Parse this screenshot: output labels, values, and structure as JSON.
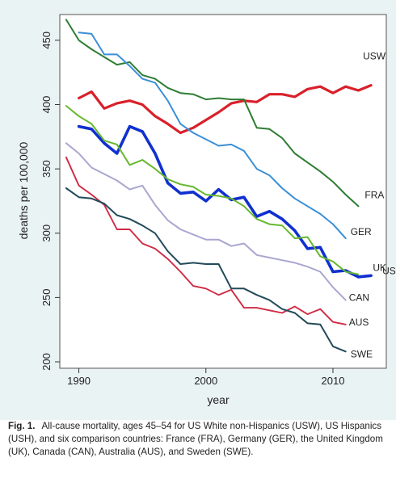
{
  "chart_data": {
    "type": "line",
    "xlabel": "year",
    "ylabel": "deaths per 100,000",
    "xlim": [
      1988.5,
      2014.2
    ],
    "ylim": [
      195,
      470
    ],
    "xticks": [
      1990,
      2000,
      2010
    ],
    "yticks": [
      200,
      250,
      300,
      350,
      400,
      450
    ],
    "grid": false,
    "legend": "none (series labeled at line ends, right side)",
    "series": [
      {
        "name": "USW",
        "color": "#d9202a",
        "width": 3.2,
        "x": [
          1990,
          1991,
          1992,
          1993,
          1994,
          1995,
          1996,
          1997,
          1998,
          1999,
          2000,
          2001,
          2002,
          2003,
          2004,
          2005,
          2006,
          2007,
          2008,
          2009,
          2010,
          2011,
          2012,
          2013
        ],
        "values": [
          405,
          410,
          397,
          401,
          403,
          400,
          391,
          385,
          378,
          382,
          388,
          394,
          401,
          403,
          402,
          408,
          408,
          406,
          412,
          414,
          409,
          414,
          411,
          415
        ]
      },
      {
        "name": "FRA",
        "color": "#2e7d32",
        "width": 2.0,
        "x": [
          1989,
          1990,
          1991,
          1992,
          1993,
          1994,
          1995,
          1996,
          1997,
          1998,
          1999,
          2000,
          2001,
          2002,
          2003,
          2004,
          2005,
          2006,
          2007,
          2008,
          2009,
          2010,
          2011,
          2012
        ],
        "values": [
          466,
          450,
          443,
          437,
          431,
          433,
          423,
          420,
          413,
          409,
          408,
          404,
          405,
          404,
          404,
          382,
          381,
          374,
          362,
          355,
          348,
          340,
          330,
          321
        ]
      },
      {
        "name": "GER",
        "color": "#3a8fd6",
        "width": 2.0,
        "x": [
          1990,
          1991,
          1992,
          1993,
          1994,
          1995,
          1996,
          1997,
          1998,
          1999,
          2000,
          2001,
          2002,
          2003,
          2004,
          2005,
          2006,
          2007,
          2008,
          2009,
          2010,
          2011
        ],
        "values": [
          456,
          455,
          439,
          439,
          430,
          420,
          417,
          403,
          385,
          378,
          373,
          368,
          369,
          364,
          350,
          345,
          335,
          327,
          321,
          315,
          307,
          296
        ]
      },
      {
        "name": "USH",
        "color": "#1030d0",
        "width": 3.6,
        "x": [
          1990,
          1991,
          1992,
          1993,
          1994,
          1995,
          1996,
          1997,
          1998,
          1999,
          2000,
          2001,
          2002,
          2003,
          2004,
          2005,
          2006,
          2007,
          2008,
          2009,
          2010,
          2011,
          2012,
          2013
        ],
        "values": [
          383,
          381,
          370,
          362,
          383,
          379,
          362,
          339,
          331,
          332,
          325,
          334,
          326,
          328,
          313,
          317,
          311,
          302,
          288,
          289,
          270,
          271,
          266,
          267
        ]
      },
      {
        "name": "UK",
        "color": "#66b82e",
        "width": 2.0,
        "x": [
          1989,
          1990,
          1991,
          1992,
          1993,
          1994,
          1995,
          1996,
          1997,
          1998,
          1999,
          2000,
          2001,
          2002,
          2003,
          2004,
          2005,
          2006,
          2007,
          2008,
          2009,
          2010,
          2011,
          2012
        ],
        "values": [
          399,
          391,
          385,
          372,
          369,
          353,
          357,
          350,
          342,
          338,
          336,
          330,
          329,
          327,
          321,
          311,
          307,
          306,
          296,
          297,
          282,
          278,
          270,
          268
        ]
      },
      {
        "name": "CAN",
        "color": "#a9a7cf",
        "width": 2.0,
        "x": [
          1989,
          1990,
          1991,
          1992,
          1993,
          1994,
          1995,
          1996,
          1997,
          1998,
          1999,
          2000,
          2001,
          2002,
          2003,
          2004,
          2005,
          2006,
          2007,
          2008,
          2009,
          2010,
          2011
        ],
        "values": [
          370,
          362,
          351,
          346,
          341,
          334,
          337,
          322,
          310,
          303,
          299,
          295,
          295,
          290,
          292,
          283,
          281,
          279,
          277,
          274,
          270,
          258,
          248
        ]
      },
      {
        "name": "AUS",
        "color": "#d02a45",
        "width": 1.9,
        "x": [
          1989,
          1990,
          1991,
          1992,
          1993,
          1994,
          1995,
          1996,
          1997,
          1998,
          1999,
          2000,
          2001,
          2002,
          2003,
          2004,
          2005,
          2006,
          2007,
          2008,
          2009,
          2010,
          2011
        ],
        "values": [
          359,
          337,
          330,
          322,
          303,
          303,
          292,
          288,
          280,
          270,
          259,
          257,
          252,
          256,
          242,
          242,
          240,
          238,
          243,
          237,
          241,
          231,
          229
        ]
      },
      {
        "name": "SWE",
        "color": "#234a5a",
        "width": 2.0,
        "x": [
          1989,
          1990,
          1991,
          1992,
          1993,
          1994,
          1995,
          1996,
          1997,
          1998,
          1999,
          2000,
          2001,
          2002,
          2003,
          2004,
          2005,
          2006,
          2007,
          2008,
          2009,
          2010,
          2011
        ],
        "values": [
          335,
          328,
          327,
          323,
          314,
          311,
          306,
          300,
          286,
          276,
          277,
          276,
          276,
          257,
          257,
          252,
          248,
          241,
          238,
          230,
          229,
          212,
          208
        ]
      }
    ]
  },
  "caption": {
    "label": "Fig. 1.",
    "text": "All-cause mortality, ages 45–54 for US White non-Hispanics (USW), US Hispanics (USH), and six comparison countries: France (FRA), Germany (GER), the United Kingdom (UK), Canada (CAN), Australia (AUS), and Sweden (SWE)."
  }
}
